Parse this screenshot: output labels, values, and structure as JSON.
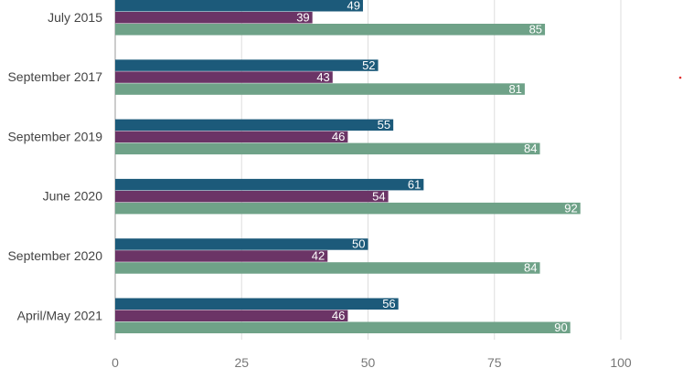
{
  "chart_data": {
    "type": "bar",
    "orientation": "horizontal",
    "categories": [
      "July 2015",
      "September 2017",
      "September 2019",
      "June 2020",
      "September 2020",
      "April/May 2021"
    ],
    "series": [
      {
        "color": "#1c5a7a",
        "values": [
          49,
          52,
          55,
          61,
          50,
          56
        ]
      },
      {
        "color": "#6b3466",
        "values": [
          39,
          43,
          46,
          54,
          42,
          46
        ]
      },
      {
        "color": "#6fa288",
        "values": [
          85,
          81,
          84,
          92,
          84,
          90
        ]
      }
    ],
    "x_ticks": [
      0,
      25,
      50,
      75,
      100
    ],
    "xlim": [
      0,
      100
    ],
    "grid": true,
    "data_labels": true,
    "title": "",
    "xlabel": "",
    "ylabel": ""
  }
}
